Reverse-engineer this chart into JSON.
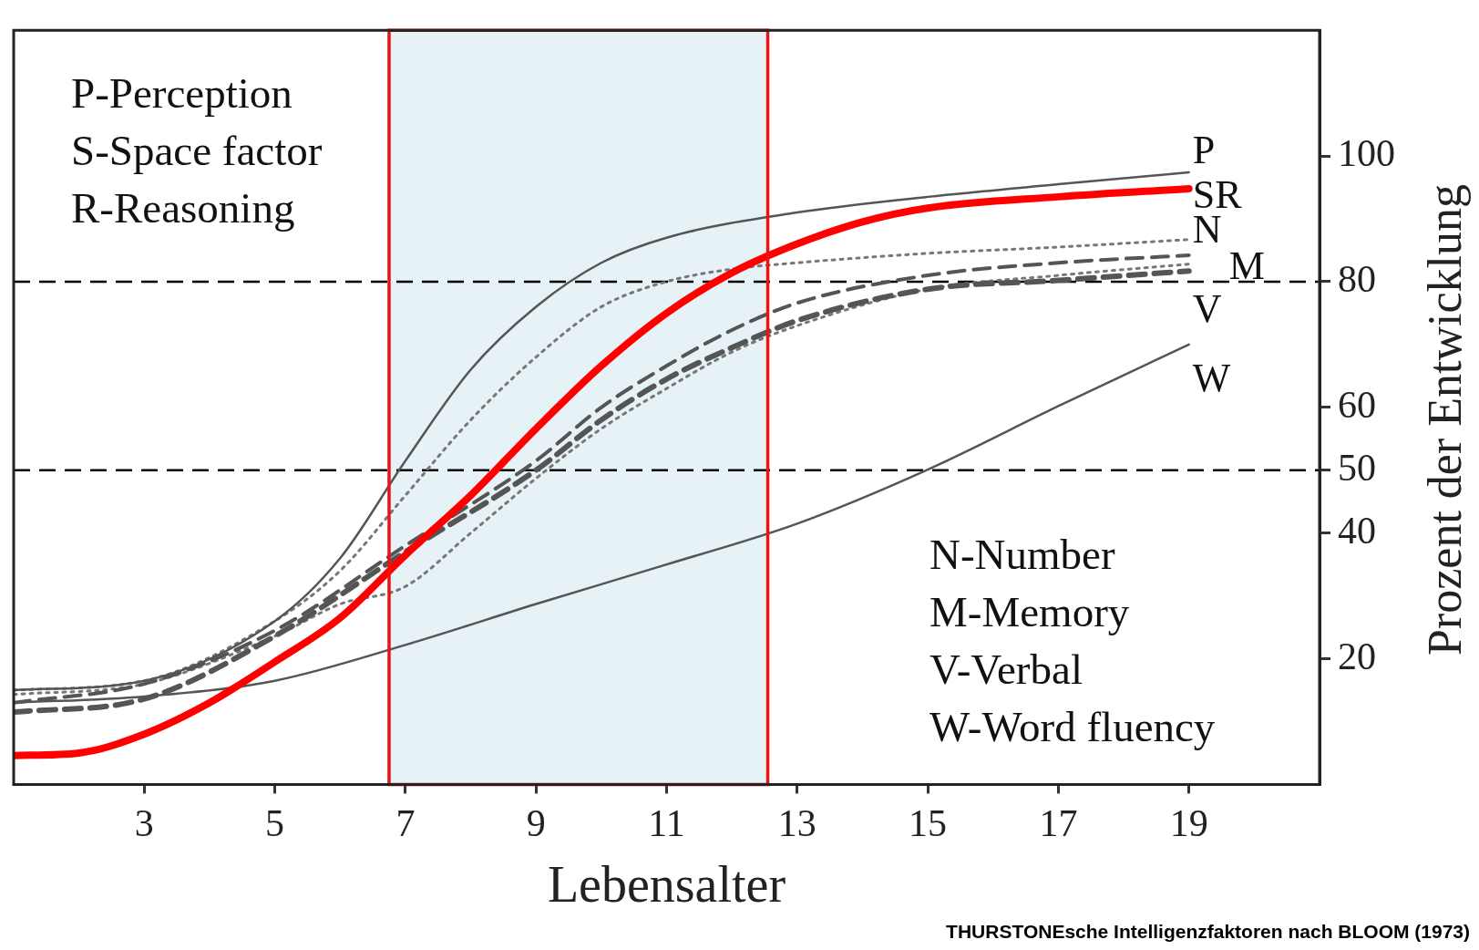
{
  "chart_data": {
    "type": "line",
    "xlabel": "Lebensalter",
    "ylabel": "Prozent der Entwicklung",
    "xlim": [
      1,
      21
    ],
    "xticks": [
      3,
      5,
      7,
      9,
      11,
      13,
      15,
      17,
      19
    ],
    "ylim": [
      0,
      120
    ],
    "yticks": [
      20,
      40,
      50,
      60,
      80,
      100
    ],
    "grid": false,
    "legend": false,
    "marker": "none",
    "series": [
      {
        "name": "P",
        "color": "#555555",
        "line_style": "solid",
        "x": [
          1,
          3,
          5,
          6,
          7,
          8,
          9,
          10,
          11,
          13,
          15,
          17,
          19
        ],
        "values": [
          15,
          16.5,
          26,
          36,
          51.5,
          66,
          76,
          83,
          87,
          91,
          93.5,
          95.5,
          97.4
        ]
      },
      {
        "name": "SR",
        "color": "#ff0000",
        "line_style": "solid",
        "x": [
          1,
          2,
          3,
          4,
          5,
          6,
          7,
          8,
          9,
          10,
          11,
          12,
          13,
          14,
          15,
          17,
          19
        ],
        "values": [
          4.6,
          5,
          8,
          13,
          19.5,
          26.5,
          36.5,
          46,
          56.6,
          66.6,
          75,
          81.4,
          86,
          89.5,
          91.7,
          93.5,
          94.8
        ]
      },
      {
        "name": "N",
        "color": "#777777",
        "line_style": "dotted",
        "x": [
          1,
          3,
          5,
          6,
          7,
          8,
          9,
          10,
          11,
          12,
          13,
          15,
          17,
          19
        ],
        "values": [
          15,
          16.5,
          26,
          34,
          46,
          58,
          68,
          76,
          80,
          82,
          83,
          84.5,
          85.5,
          86.7
        ]
      },
      {
        "name": "M",
        "color": "#555555",
        "line_style": "dashed",
        "x": [
          1,
          3,
          5,
          7,
          9,
          10,
          11,
          12,
          13,
          15,
          17,
          19
        ],
        "values": [
          13,
          16,
          24.5,
          38,
          51.5,
          60,
          66.6,
          72.3,
          76.6,
          81,
          83,
          84.2
        ]
      },
      {
        "name": "V",
        "color": "#555555",
        "line_style": "dashed",
        "x": [
          1,
          3,
          5,
          7,
          9,
          10,
          11,
          12,
          13,
          15,
          17,
          19
        ],
        "values": [
          11.5,
          13.6,
          23.6,
          37,
          50,
          58,
          64.5,
          69.5,
          73.8,
          78.8,
          80.2,
          81.7
        ]
      },
      {
        "color": "#777777",
        "line_style": "dotted",
        "x": [
          1,
          3,
          5,
          6,
          7,
          8,
          9,
          10,
          11,
          12,
          13,
          15,
          17,
          19
        ],
        "values": [
          14.3,
          16,
          23.6,
          28.7,
          31.5,
          40,
          48.7,
          56.6,
          63,
          68.8,
          73,
          78.8,
          81,
          82.8
        ]
      },
      {
        "name": "W",
        "color": "#555555",
        "line_style": "solid",
        "x": [
          1,
          3,
          5,
          7,
          9,
          11,
          13,
          15,
          17,
          19
        ],
        "values": [
          13,
          14,
          16.5,
          22.2,
          28.7,
          35,
          41.5,
          50.1,
          60.2,
          70
        ]
      }
    ],
    "ref_lines": [
      {
        "axis": "y",
        "value": 80,
        "color": "#000000",
        "line_style": "dashed"
      },
      {
        "axis": "y",
        "value": 50,
        "color": "#000000",
        "line_style": "dashed"
      }
    ],
    "bands": [
      {
        "axis": "x",
        "from": 6.75,
        "to": 12.55,
        "color": "#e6f2f5"
      }
    ],
    "annotations": [
      "P-Perception",
      "S-Space factor",
      "R-Reasoning",
      "N-Number",
      "M-Memory",
      "V-Verbal",
      "W-Word fluency",
      "THURSTONEsche Intelligenzfaktoren nach BLOOM (1973)"
    ]
  }
}
